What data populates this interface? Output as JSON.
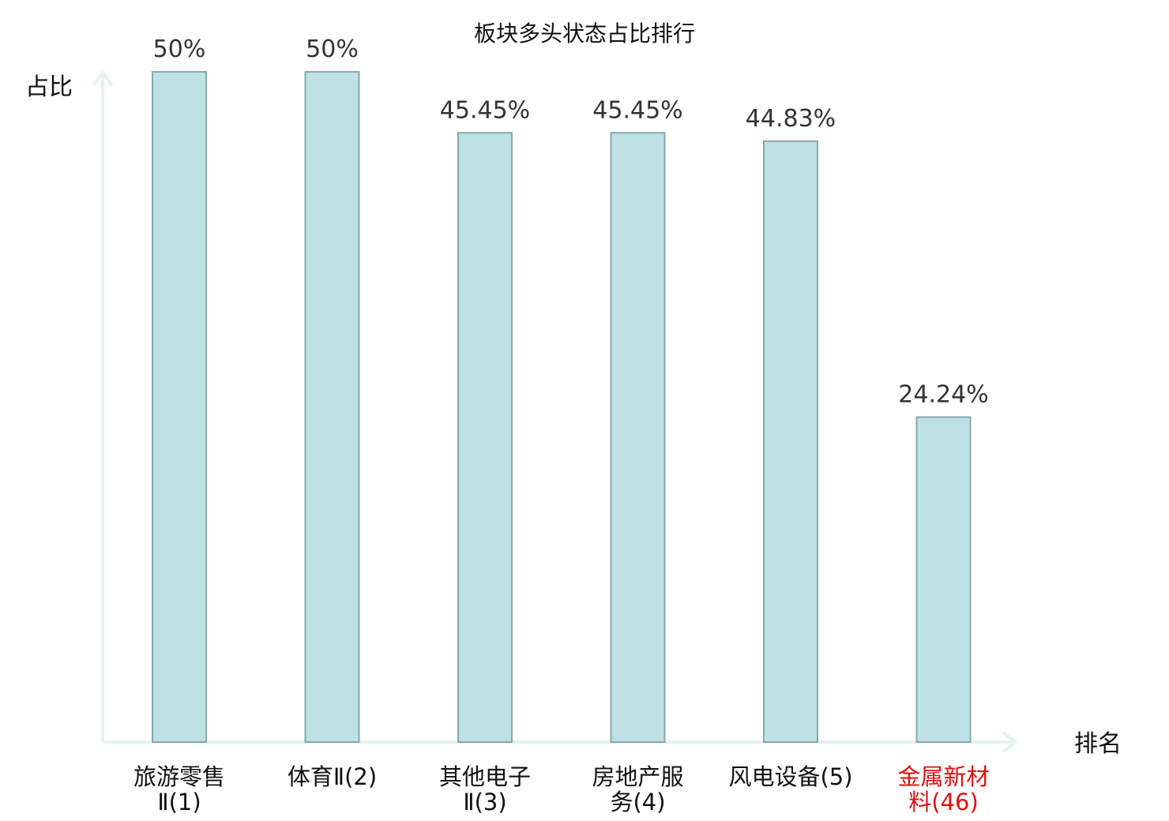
{
  "chart_data": {
    "type": "bar",
    "title": "板块多头状态占比排行",
    "ylabel": "占比",
    "xlabel": "排名",
    "ylim": [
      0,
      50
    ],
    "grid": false,
    "categories": [
      {
        "lines": [
          "旅游零售",
          "Ⅱ(1)"
        ],
        "highlight": false
      },
      {
        "lines": [
          "体育Ⅱ(2)"
        ],
        "highlight": false
      },
      {
        "lines": [
          "其他电子",
          "Ⅱ(3)"
        ],
        "highlight": false
      },
      {
        "lines": [
          "房地产服",
          "务(4)"
        ],
        "highlight": false
      },
      {
        "lines": [
          "风电设备(5)"
        ],
        "highlight": false
      },
      {
        "lines": [
          "金属新材",
          "料(46)"
        ],
        "highlight": true
      }
    ],
    "values": [
      50,
      50,
      45.45,
      45.45,
      44.83,
      24.24
    ],
    "value_labels": [
      "50%",
      "50%",
      "45.45%",
      "45.45%",
      "44.83%",
      "24.24%"
    ],
    "colors": {
      "bar_fill": "#bde1e4",
      "bar_stroke": "#8aa7aa",
      "axis": "#e3f3f1",
      "highlight": "#e01010"
    }
  }
}
